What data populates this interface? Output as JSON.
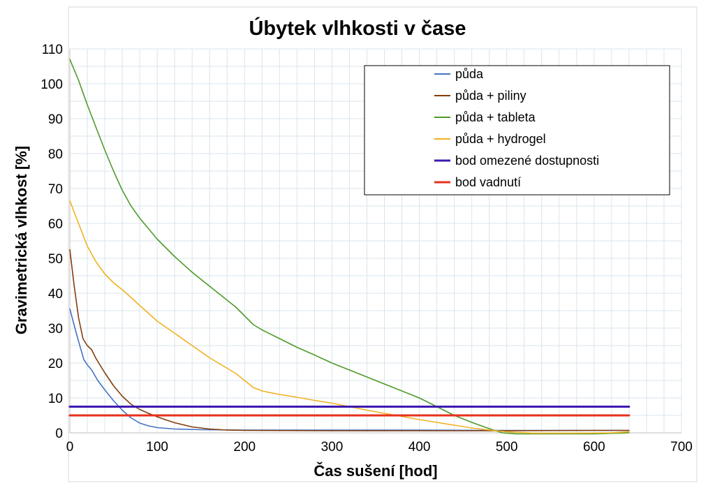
{
  "chart_data": {
    "type": "line",
    "title": "Úbytek vlhkosti v čase",
    "xlabel": "Čas sušení [hod]",
    "ylabel": "Gravimetrická vlhkost [%]",
    "xlim": [
      0,
      700
    ],
    "ylim": [
      0,
      110
    ],
    "xticks": [
      0,
      100,
      200,
      300,
      400,
      500,
      600,
      700
    ],
    "yticks": [
      0,
      10,
      20,
      30,
      40,
      50,
      60,
      70,
      80,
      90,
      100,
      110
    ],
    "grid": true,
    "legend_position": "top-right",
    "series": [
      {
        "name": "půda",
        "color": "#4472c4",
        "points": [
          [
            0,
            35.5
          ],
          [
            8,
            28
          ],
          [
            16,
            21
          ],
          [
            20,
            19.5
          ],
          [
            25,
            18
          ],
          [
            32,
            15
          ],
          [
            40,
            12.3
          ],
          [
            50,
            9.2
          ],
          [
            60,
            6.5
          ],
          [
            70,
            4.3
          ],
          [
            80,
            2.8
          ],
          [
            90,
            2
          ],
          [
            100,
            1.5
          ],
          [
            120,
            1.1
          ],
          [
            150,
            0.9
          ],
          [
            200,
            0.8
          ],
          [
            300,
            0.8
          ],
          [
            400,
            0.8
          ],
          [
            500,
            0.7
          ],
          [
            600,
            0.7
          ],
          [
            640,
            0.7
          ]
        ]
      },
      {
        "name": "půda + piliny",
        "color": "#843c0c",
        "points": [
          [
            0,
            52.5
          ],
          [
            5,
            42
          ],
          [
            10,
            33
          ],
          [
            15,
            27
          ],
          [
            20,
            25
          ],
          [
            25,
            23.8
          ],
          [
            30,
            21.3
          ],
          [
            40,
            17.2
          ],
          [
            50,
            13.5
          ],
          [
            60,
            10.5
          ],
          [
            70,
            8.2
          ],
          [
            80,
            6.7
          ],
          [
            90,
            5.6
          ],
          [
            100,
            4.6
          ],
          [
            110,
            3.7
          ],
          [
            120,
            2.9
          ],
          [
            140,
            1.7
          ],
          [
            160,
            1.1
          ],
          [
            180,
            0.8
          ],
          [
            200,
            0.7
          ],
          [
            300,
            0.6
          ],
          [
            400,
            0.6
          ],
          [
            500,
            0.6
          ],
          [
            600,
            0.7
          ],
          [
            640,
            0.7
          ]
        ]
      },
      {
        "name": "půda + tableta",
        "color": "#4e9a2a",
        "points": [
          [
            0,
            107
          ],
          [
            10,
            101
          ],
          [
            20,
            94
          ],
          [
            30,
            87.5
          ],
          [
            40,
            81
          ],
          [
            50,
            75
          ],
          [
            60,
            69.5
          ],
          [
            70,
            65
          ],
          [
            80,
            61.5
          ],
          [
            90,
            58.5
          ],
          [
            100,
            55.5
          ],
          [
            120,
            50.5
          ],
          [
            140,
            46
          ],
          [
            160,
            42
          ],
          [
            180,
            38
          ],
          [
            190,
            36
          ],
          [
            200,
            33.5
          ],
          [
            210,
            31
          ],
          [
            220,
            29.5
          ],
          [
            240,
            27
          ],
          [
            260,
            24.5
          ],
          [
            280,
            22.3
          ],
          [
            300,
            20
          ],
          [
            320,
            18
          ],
          [
            340,
            16
          ],
          [
            360,
            14
          ],
          [
            380,
            12
          ],
          [
            400,
            10
          ],
          [
            420,
            7.5
          ],
          [
            440,
            5
          ],
          [
            460,
            3
          ],
          [
            480,
            1.2
          ],
          [
            495,
            0
          ],
          [
            510,
            -0.3
          ],
          [
            560,
            -0.3
          ],
          [
            600,
            -0.3
          ],
          [
            640,
            0
          ]
        ]
      },
      {
        "name": "půda + hydrogel",
        "color": "#f1b11f",
        "points": [
          [
            0,
            66.5
          ],
          [
            10,
            60
          ],
          [
            20,
            53.5
          ],
          [
            30,
            49
          ],
          [
            40,
            45.5
          ],
          [
            50,
            43
          ],
          [
            60,
            41
          ],
          [
            70,
            38.8
          ],
          [
            80,
            36.5
          ],
          [
            100,
            32
          ],
          [
            120,
            28.5
          ],
          [
            140,
            25
          ],
          [
            160,
            21.5
          ],
          [
            180,
            18.5
          ],
          [
            190,
            17
          ],
          [
            200,
            15
          ],
          [
            210,
            13
          ],
          [
            220,
            12
          ],
          [
            240,
            11
          ],
          [
            260,
            10.2
          ],
          [
            280,
            9.3
          ],
          [
            300,
            8.5
          ],
          [
            320,
            7.5
          ],
          [
            340,
            6.5
          ],
          [
            360,
            5.6
          ],
          [
            380,
            4.7
          ],
          [
            400,
            3.8
          ],
          [
            420,
            3
          ],
          [
            440,
            2.2
          ],
          [
            460,
            1.4
          ],
          [
            480,
            0.8
          ],
          [
            500,
            0.3
          ],
          [
            530,
            -0.1
          ],
          [
            580,
            -0.1
          ],
          [
            620,
            0
          ],
          [
            640,
            0.3
          ]
        ]
      },
      {
        "name": "bod omezené dostupnosti",
        "color": "#3d1ab0",
        "points": [
          [
            0,
            7.5
          ],
          [
            640,
            7.5
          ]
        ]
      },
      {
        "name": "bod vadnutí",
        "color": "#e8301c",
        "points": [
          [
            0,
            5
          ],
          [
            640,
            5
          ]
        ]
      }
    ]
  }
}
